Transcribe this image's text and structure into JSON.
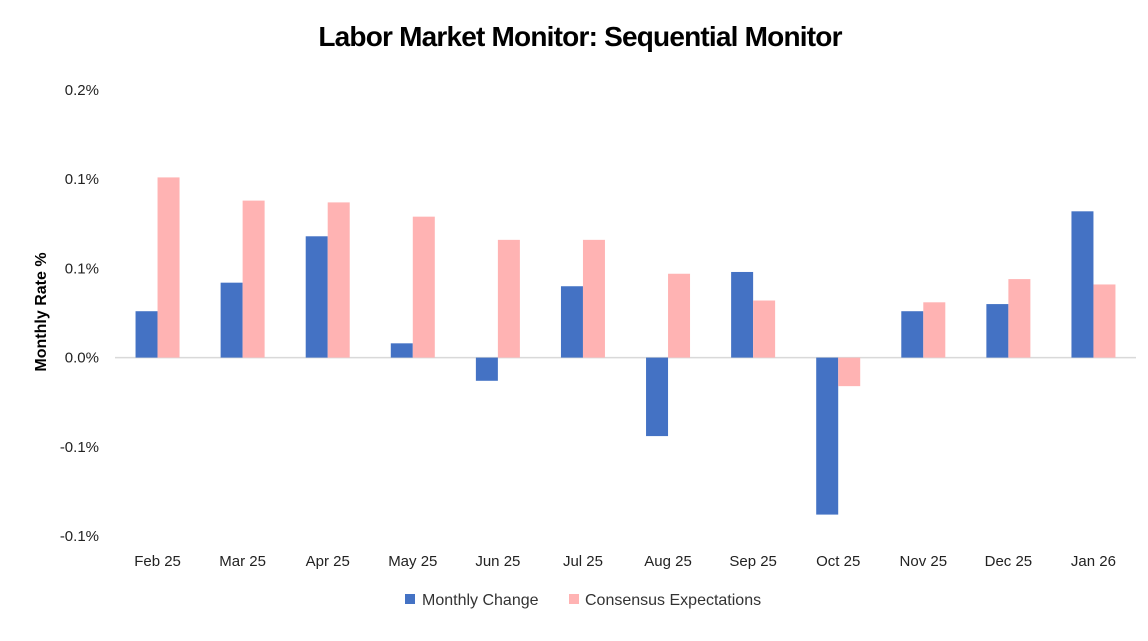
{
  "chart_data": {
    "type": "bar",
    "title": "Labor Market Monitor: Sequential Monitor",
    "xlabel": "",
    "ylabel": "Monthly Rate %",
    "categories": [
      "Feb 25",
      "Mar 25",
      "Apr 25",
      "May 25",
      "Jun 25",
      "Jul 25",
      "Aug 25",
      "Sep 25",
      "Oct 25",
      "Nov 25",
      "Dec 25",
      "Jan 26"
    ],
    "series": [
      {
        "name": "Monthly Change",
        "color": "#4472C4",
        "values": [
          0.026,
          0.042,
          0.068,
          0.008,
          -0.013,
          0.04,
          -0.044,
          0.048,
          -0.088,
          0.026,
          0.03,
          0.082
        ]
      },
      {
        "name": "Consensus Expectations",
        "color": "#FFB3B3",
        "values": [
          0.101,
          0.088,
          0.087,
          0.079,
          0.066,
          0.066,
          0.047,
          0.032,
          -0.016,
          0.031,
          0.044,
          0.041
        ]
      }
    ],
    "ylim": [
      -0.1,
      0.15
    ],
    "yticks": [
      -0.1,
      -0.05,
      0,
      0.05,
      0.1,
      0.15
    ],
    "ytick_labels": [
      "-0.1%",
      "-0.1%",
      "0.0%",
      "0.1%",
      "0.1%",
      "0.2%"
    ],
    "grid": false,
    "legend_position": "bottom"
  },
  "colors": {
    "zero_line": "#D9D9D9"
  }
}
